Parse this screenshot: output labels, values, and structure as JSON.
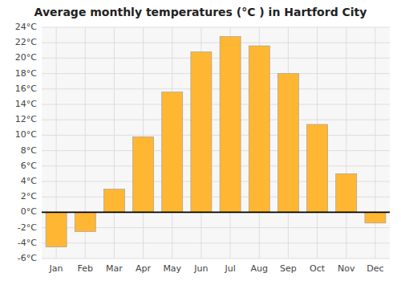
{
  "chart_data": {
    "type": "bar",
    "title": "Average monthly temperatures (°C ) in Hartford City",
    "categories": [
      "Jan",
      "Feb",
      "Mar",
      "Apr",
      "May",
      "Jun",
      "Jul",
      "Aug",
      "Sep",
      "Oct",
      "Nov",
      "Dec"
    ],
    "values": [
      -4.5,
      -2.5,
      3.0,
      9.8,
      15.6,
      20.8,
      22.8,
      21.6,
      18.0,
      11.4,
      5.0,
      -1.4
    ],
    "color": "#FFB733",
    "ylim": [
      -6,
      24
    ],
    "yticks": [
      {
        "value": -6,
        "label": "-6°C"
      },
      {
        "value": -4,
        "label": "-4°C"
      },
      {
        "value": -2,
        "label": "-2°C"
      },
      {
        "value": 0,
        "label": "0°C"
      },
      {
        "value": 2,
        "label": "2°C"
      },
      {
        "value": 4,
        "label": "4°C"
      },
      {
        "value": 6,
        "label": "6°C"
      },
      {
        "value": 8,
        "label": "8°C"
      },
      {
        "value": 10,
        "label": "10°C"
      },
      {
        "value": 12,
        "label": "12°C"
      },
      {
        "value": 14,
        "label": "14°C"
      },
      {
        "value": 16,
        "label": "16°C"
      },
      {
        "value": 18,
        "label": "18°C"
      },
      {
        "value": 20,
        "label": "20°C"
      },
      {
        "value": 22,
        "label": "22°C"
      },
      {
        "value": 24,
        "label": "24°C"
      }
    ],
    "grid": true
  }
}
